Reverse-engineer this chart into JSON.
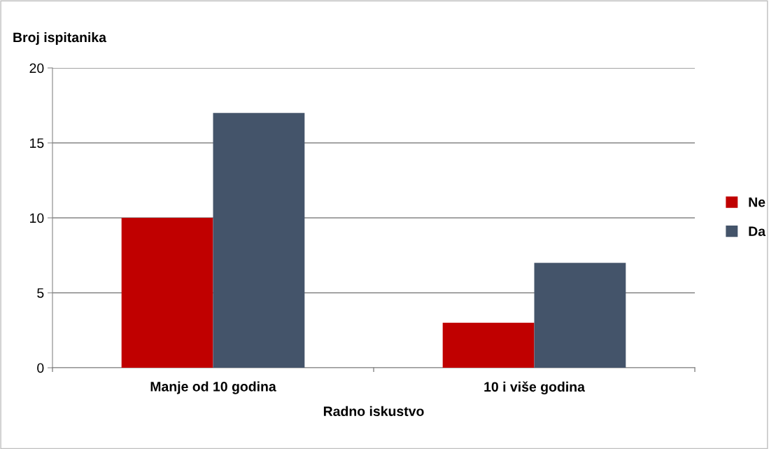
{
  "chart_data": {
    "type": "bar",
    "ylabel": "Broj ispitanika",
    "xlabel": "Radno iskustvo",
    "categories": [
      "Manje od 10 godina",
      "10 i više godina"
    ],
    "series": [
      {
        "name": "Ne",
        "color": "#c00000",
        "values": [
          10,
          3
        ]
      },
      {
        "name": "Da",
        "color": "#44546a",
        "values": [
          17,
          7
        ]
      }
    ],
    "ylim": [
      0,
      20
    ],
    "yticks": [
      0,
      5,
      10,
      15,
      20
    ],
    "grid": "y",
    "legend": "right"
  }
}
